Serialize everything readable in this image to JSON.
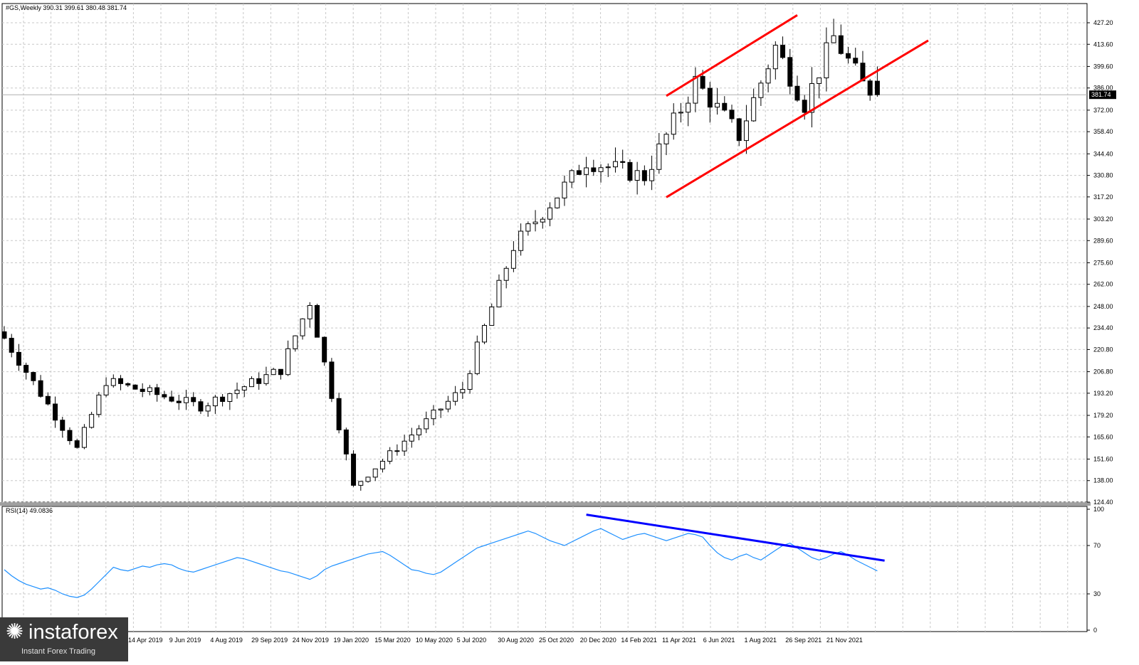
{
  "header": {
    "title": "#GS,Weekly  390.31 399.61 380.48 381.74"
  },
  "price_tag": "381.74",
  "rsi_header": "RSI(14) 49.0836",
  "logo": {
    "name": "instaforex",
    "tagline": "Instant Forex Trading"
  },
  "colors": {
    "channel": "#ff0000",
    "divergence": "#0000ff",
    "rsi_line": "#1e90ff",
    "grid": "#c8c8c8",
    "candle": "#000000"
  },
  "chart_data": [
    {
      "type": "candlestick",
      "title": "#GS,Weekly",
      "ohlc_last": {
        "open": 390.31,
        "high": 399.61,
        "low": 380.48,
        "close": 381.74
      },
      "y_ticks": [
        427.2,
        413.6,
        399.6,
        386.0,
        372.0,
        358.4,
        344.4,
        330.8,
        317.2,
        303.2,
        289.6,
        275.6,
        262.0,
        248.0,
        234.4,
        220.8,
        206.8,
        193.2,
        179.2,
        165.6,
        151.6,
        138.0,
        124.4
      ],
      "ylim": [
        124.4,
        432
      ],
      "x_labels": [
        "14 Apr 2019",
        "9 Jun 2019",
        "4 Aug 2019",
        "29 Sep 2019",
        "24 Nov 2019",
        "19 Jan 2020",
        "15 Mar 2020",
        "10 May 2020",
        "5 Jul 2020",
        "30 Aug 2020",
        "25 Oct 2020",
        "20 Dec 2020",
        "14 Feb 2021",
        "11 Apr 2021",
        "6 Jun 2021",
        "1 Aug 2021",
        "26 Sep 2021",
        "21 Nov 2021"
      ],
      "channel": {
        "upper": [
          [
            53,
            381
          ],
          [
            62,
            432
          ]
        ],
        "lower": [
          [
            53,
            317
          ],
          [
            71,
            416
          ]
        ]
      },
      "key_points": [
        {
          "week": 0,
          "close": 228
        },
        {
          "week": 10,
          "close": 158
        },
        {
          "week": 14,
          "close": 201
        },
        {
          "week": 27,
          "close": 185
        },
        {
          "week": 38,
          "close": 208
        },
        {
          "week": 42,
          "close": 251
        },
        {
          "week": 48,
          "close": 134
        },
        {
          "week": 63,
          "close": 196
        },
        {
          "week": 70,
          "close": 286
        },
        {
          "week": 80,
          "close": 340
        },
        {
          "week": 88,
          "close": 330
        },
        {
          "week": 95,
          "close": 390
        },
        {
          "week": 101,
          "close": 356
        },
        {
          "week": 106,
          "close": 412
        },
        {
          "week": 110,
          "close": 376
        },
        {
          "week": 114,
          "close": 418
        },
        {
          "week": 118,
          "close": 388
        },
        {
          "week": 120,
          "close": 381.74
        }
      ]
    },
    {
      "type": "line",
      "title": "RSI(14) 49.0836",
      "y_ticks": [
        100,
        70,
        30,
        0
      ],
      "ylim": [
        0,
        100
      ],
      "last_value": 49.0836,
      "divergence_line": [
        [
          80,
          95.5
        ],
        [
          121,
          57.5
        ]
      ],
      "values": [
        50,
        45,
        41,
        38,
        36,
        34,
        35,
        33,
        30,
        28,
        27,
        29,
        34,
        40,
        46,
        52,
        50,
        49,
        51,
        53,
        52,
        54,
        55,
        54,
        51,
        49,
        48,
        50,
        52,
        54,
        56,
        58,
        60,
        59,
        57,
        55,
        53,
        51,
        49,
        48,
        46,
        44,
        42,
        45,
        50,
        53,
        55,
        57,
        59,
        61,
        63,
        64,
        65,
        62,
        58,
        54,
        50,
        49,
        47,
        46,
        48,
        52,
        56,
        60,
        64,
        68,
        70,
        72,
        74,
        76,
        78,
        80,
        82,
        80,
        77,
        74,
        72,
        70,
        73,
        76,
        79,
        82,
        84,
        81,
        78,
        75,
        77,
        79,
        80,
        78,
        76,
        74,
        76,
        78,
        80,
        79,
        77,
        70,
        64,
        60,
        58,
        61,
        63,
        60,
        58,
        62,
        66,
        70,
        72,
        68,
        64,
        60,
        58,
        60,
        63,
        65,
        62,
        58,
        55,
        52,
        49
      ]
    }
  ]
}
